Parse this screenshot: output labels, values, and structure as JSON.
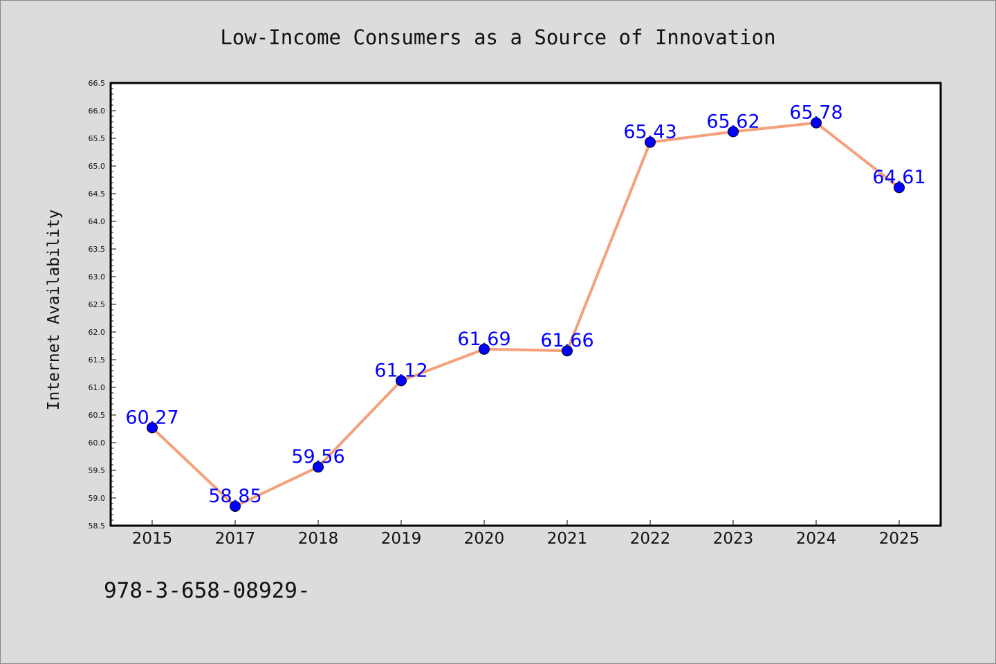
{
  "chart_data": {
    "type": "line",
    "title": "Low-Income Consumers as a Source of Innovation",
    "ylabel": "Internet Availability",
    "xlabel": "",
    "categories": [
      "2015",
      "2017",
      "2018",
      "2019",
      "2020",
      "2021",
      "2022",
      "2023",
      "2024",
      "2025"
    ],
    "series": [
      {
        "values": [
          60.27,
          58.85,
          59.56,
          61.12,
          61.69,
          61.66,
          65.43,
          65.62,
          65.78,
          64.61
        ],
        "data_labels": [
          "60.27",
          "58.85",
          "59.56",
          "61.12",
          "61.69",
          "61.66",
          "65.43",
          "65.62",
          "65.78",
          "64.61"
        ]
      }
    ],
    "ylim": [
      58.5,
      66.5
    ],
    "yticks": [
      "58.5",
      "59.0",
      "59.5",
      "60.0",
      "60.5",
      "61.0",
      "61.5",
      "62.0",
      "62.5",
      "63.0",
      "63.5",
      "64.0",
      "64.5",
      "65.0",
      "65.5",
      "66.0",
      "66.5"
    ],
    "grid": false,
    "colors": {
      "line": "#f4a07a",
      "marker": "#0000ff",
      "data_label": "#0000ff",
      "plot_bg": "#ffffff",
      "page_bg": "#dcdcdc"
    }
  },
  "footer": {
    "code": "978-3-658-08929-"
  }
}
